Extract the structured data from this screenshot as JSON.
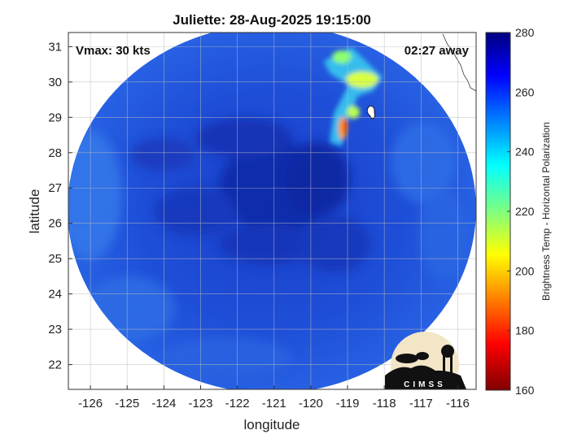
{
  "title": "Juliette: 28-Aug-2025 19:15:00",
  "annotations": {
    "vmax": "Vmax: 30 kts",
    "time_away": "02:27 away"
  },
  "map": {
    "x_label": "longitude",
    "y_label": "latitude",
    "x_range": [
      -126.6,
      -115.5
    ],
    "y_range": [
      21.3,
      31.4
    ],
    "x_ticks": [
      "-126",
      "-125",
      "-124",
      "-123",
      "-122",
      "-121",
      "-120",
      "-119",
      "-118",
      "-117",
      "-116"
    ],
    "y_ticks": [
      "31",
      "30",
      "29",
      "28",
      "27",
      "26",
      "25",
      "24",
      "23",
      "22"
    ],
    "grid": true
  },
  "colorbar": {
    "label": "Brightness Temp - Horizontal Polarization",
    "ticks": [
      "280",
      "260",
      "240",
      "220",
      "200",
      "180",
      "160"
    ],
    "range": [
      160,
      280
    ],
    "colormap": "jet"
  },
  "logo": {
    "text": "CIMSS"
  }
}
